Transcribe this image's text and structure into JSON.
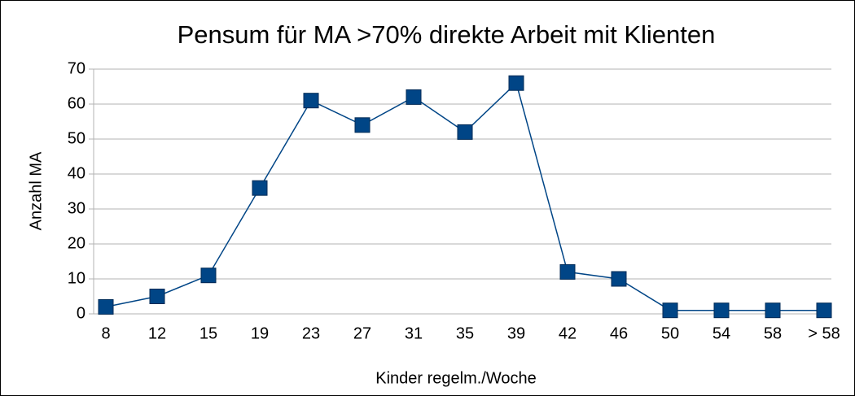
{
  "chart_data": {
    "type": "line",
    "title": "Pensum für MA >70% direkte Arbeit mit Klienten",
    "x_label": "Kinder regelm./Woche",
    "y_label": "Anzahl MA",
    "categories": [
      "8",
      "12",
      "15",
      "19",
      "23",
      "27",
      "31",
      "35",
      "39",
      "42",
      "46",
      "50",
      "54",
      "58",
      "> 58"
    ],
    "values": [
      2,
      5,
      11,
      36,
      61,
      54,
      62,
      52,
      66,
      12,
      10,
      1,
      1,
      1,
      1
    ],
    "color": "#004586",
    "ylim": [
      0,
      70
    ],
    "yticks": [
      0,
      10,
      20,
      30,
      40,
      50,
      60,
      70
    ],
    "grid": true
  }
}
